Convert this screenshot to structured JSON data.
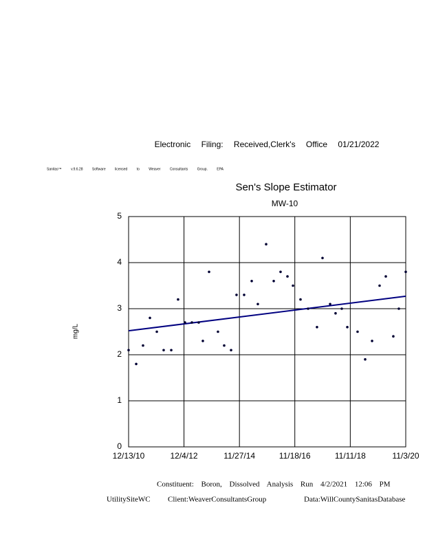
{
  "header": {
    "filing": "Electronic Filing: Received,Clerk's Office 01/21/2022",
    "license": "Sanitas™ v.9.6.28 Software licensed to Weaver Consultants Group. EPA"
  },
  "chart_data": {
    "type": "scatter",
    "title": "Sen's Slope Estimator",
    "subtitle": "MW-10",
    "y_label": "mg/L",
    "x": [
      "12/13/10",
      "3/22/11",
      "6/19/11",
      "9/17/11",
      "12/16/11",
      "3/14/12",
      "6/21/12",
      "9/18/12",
      "12/17/12",
      "3/17/13",
      "6/14/13",
      "8/7/13",
      "10/27/13",
      "2/20/14",
      "5/12/14",
      "8/10/14",
      "10/20/14",
      "1/27/15",
      "5/6/15",
      "7/25/15",
      "11/10/15",
      "2/17/16",
      "5/16/16",
      "8/14/16",
      "10/25/16",
      "1/31/17",
      "5/10/17",
      "9/3/17",
      "11/14/17",
      "2/21/18",
      "5/3/18",
      "7/23/18",
      "10/3/18",
      "2/14/19",
      "5/24/19",
      "8/22/19",
      "11/28/19",
      "2/17/20",
      "5/25/20",
      "8/5/20",
      "11/3/20"
    ],
    "values": [
      2.1,
      1.8,
      2.2,
      2.8,
      2.5,
      2.1,
      2.1,
      3.2,
      2.7,
      2.7,
      2.7,
      2.3,
      3.8,
      2.5,
      2.2,
      2.1,
      3.3,
      3.3,
      3.6,
      3.1,
      4.4,
      3.6,
      3.8,
      3.7,
      3.5,
      3.2,
      3.0,
      2.6,
      4.1,
      3.1,
      2.9,
      3.0,
      2.6,
      2.5,
      1.9,
      2.3,
      3.5,
      3.7,
      2.4,
      3.0,
      3.8
    ],
    "color": "#000033",
    "trend": {
      "x": [
        "12/13/10",
        "11/3/20"
      ],
      "values": [
        2.52,
        3.27
      ],
      "color": "#000080"
    },
    "xlim": [
      "12/13/10",
      "11/3/20"
    ],
    "xticks": [
      "12/13/10",
      "12/4/12",
      "11/27/14",
      "11/18/16",
      "11/11/18",
      "11/3/20"
    ],
    "ylim": [
      0,
      5
    ],
    "yticks": [
      0,
      1,
      2,
      3,
      4,
      5
    ],
    "grid": true
  },
  "footer": {
    "analysis": "Constituent: Boron, Dissolved Analysis Run 4/2/2021 12:06 PM",
    "site": "UtilitySiteWC",
    "client": "Client:WeaverConsultantsGroup",
    "data": "Data:WillCountySanitasDatabase"
  }
}
